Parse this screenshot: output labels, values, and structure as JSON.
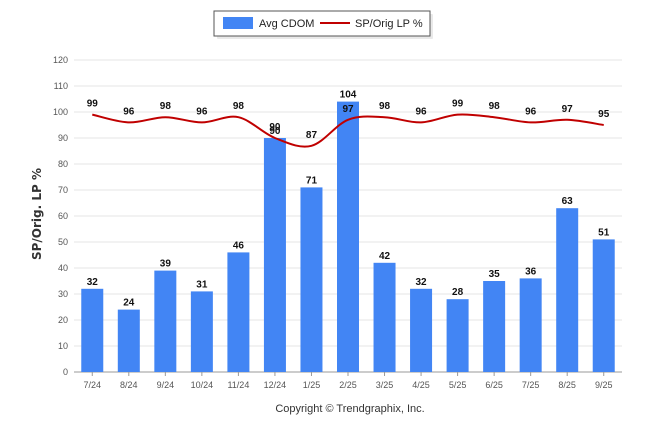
{
  "chart_data": {
    "type": "bar",
    "title": "",
    "xlabel": "",
    "ylabel": "SP/Orig. LP %",
    "ylim": [
      0,
      120
    ],
    "yticks": [
      0,
      10,
      20,
      30,
      40,
      50,
      60,
      70,
      80,
      90,
      100,
      110,
      120
    ],
    "grid": true,
    "legend_position": "top-center",
    "categories": [
      "7/24",
      "8/24",
      "9/24",
      "10/24",
      "11/24",
      "12/24",
      "1/25",
      "2/25",
      "3/25",
      "4/25",
      "5/25",
      "6/25",
      "7/25",
      "8/25",
      "9/25"
    ],
    "series": [
      {
        "name": "Avg CDOM",
        "type": "bar",
        "color": "#4285f4",
        "values": [
          32,
          24,
          39,
          31,
          46,
          90,
          71,
          104,
          42,
          32,
          28,
          35,
          36,
          63,
          51
        ]
      },
      {
        "name": "SP/Orig LP %",
        "type": "line",
        "color": "#c00000",
        "values": [
          99,
          96,
          98,
          96,
          98,
          90,
          87,
          97,
          98,
          96,
          99,
          98,
          96,
          97,
          95
        ]
      }
    ],
    "footer": "Copyright © Trendgraphix, Inc."
  }
}
